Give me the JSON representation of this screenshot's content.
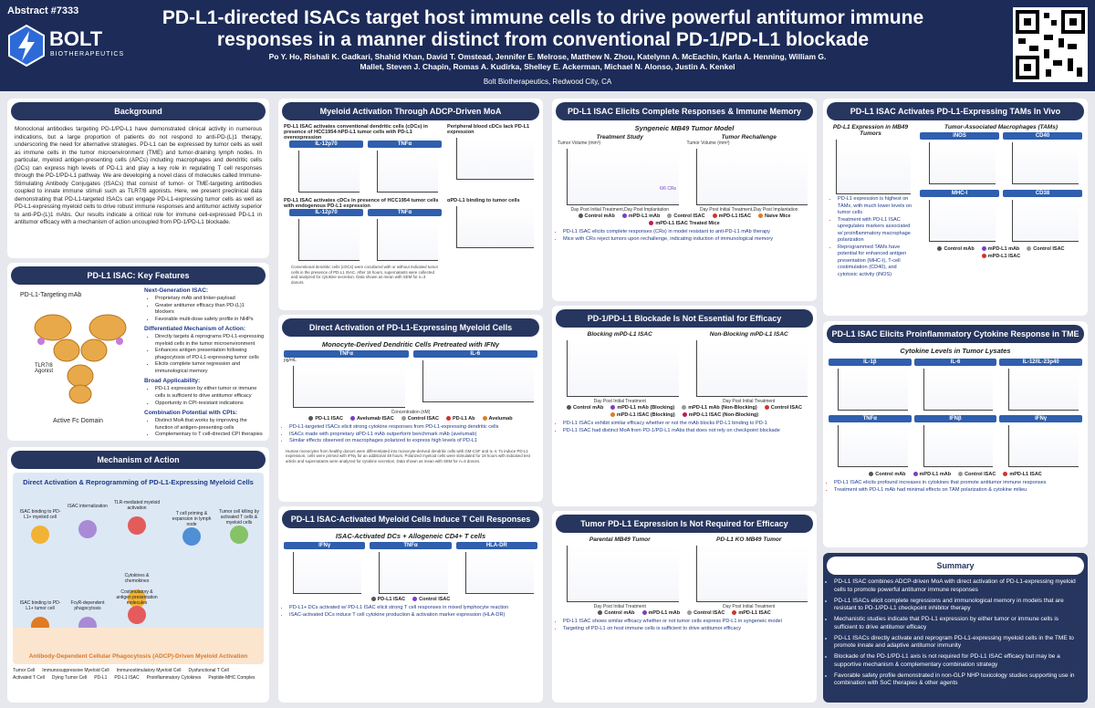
{
  "header": {
    "abstract": "Abstract #7333",
    "logo": "BOLT",
    "logo_sub": "BIOTHERAPEUTICS",
    "title": "PD-L1-directed ISACs target host immune cells to drive powerful antitumor immune responses in a manner distinct from conventional PD-1/PD-L1 blockade",
    "authors": "Po Y. Ho, Rishali K. Gadkari, Shahid Khan, David T. Omstead, Jennifer E. Melrose, Matthew N. Zhou, Katelynn A. McEachin, Karla A. Henning, William G. Mallet, Steven J. Chapin, Romas A. Kudirka, Shelley E. Ackerman, Michael N. Alonso, Justin A. Kenkel",
    "affiliation": "Bolt Biotherapeutics, Redwood City, CA"
  },
  "background": {
    "title": "Background",
    "text": "Monoclonal antibodies targeting PD-1/PD-L1 have demonstrated clinical activity in numerous indications, but a large proportion of patients do not respond to anti-PD-(L)1 therapy, underscoring the need for alternative strategies. PD-L1 can be expressed by tumor cells as well as immune cells in the tumor microenvironment (TME) and tumor-draining lymph nodes. In particular, myeloid antigen-presenting cells (APCs) including macrophages and dendritic cells (DCs) can express high levels of PD-L1 and play a key role in regulating T cell responses through the PD-1/PD-L1 pathway. We are developing a novel class of molecules called Immune-Stimulating Antibody Conjugates (ISACs) that consist of tumor- or TME-targeting antibodies coupled to innate immune stimuli such as TLR7/8 agonists. Here, we present preclinical data demonstrating that PD-L1-targeted ISACs can engage PD-L1-expressing tumor cells as well as PD-L1-expressing myeloid cells to drive robust immune responses and antitumor activity superior to anti-PD-(L)1 mAbs. Our results indicate a critical role for immune cell-expressed PD-L1 in antitumor efficacy with a mechanism of action uncoupled from PD-1/PD-L1 blockade."
  },
  "key_features": {
    "title": "PD-L1 ISAC: Key Features",
    "antibody_label": "PD-L1-Targeting mAb",
    "agonist_label": "TLR7/8 Agonist",
    "fc_label": "Active Fc Domain",
    "groups": [
      {
        "heading": "Next-Generation ISAC:",
        "items": [
          "Proprietary mAb and linker-payload",
          "Greater antitumor efficacy than PD-(L)1 blockers",
          "Favorable multi-dose safety profile in NHPs"
        ]
      },
      {
        "heading": "Differentiated Mechanism of Action:",
        "items": [
          "Directly targets & reprograms PD-L1-expressing myeloid cells in the tumor microenvironment",
          "Enhances antigen presentation following phagocytosis of PD-L1-expressing tumor cells",
          "Elicits complete tumor regression and immunological memory"
        ]
      },
      {
        "heading": "Broad Applicability:",
        "items": [
          "PD-L1 expression by either tumor or immune cells is sufficient to drive antitumor efficacy",
          "Opportunity in CPI-resistant indications"
        ]
      },
      {
        "heading": "Combination Potential with CPIs:",
        "items": [
          "Distinct MoA that works by improving the function of antigen-presenting cells",
          "Complementary to T cell-directed CPI therapies"
        ]
      }
    ]
  },
  "mechanism": {
    "title": "Mechanism of Action",
    "subtitle": "Direct Activation & Reprogramming of PD-L1-Expressing Myeloid Cells",
    "steps": [
      "ISAC binding to PD-L1+ myeloid cell",
      "ISAC internalization",
      "TLR-mediated myeloid activation",
      "T cell priming & expansion in lymph node",
      "Tumor cell killing by activated T cells & myeloid cells",
      "Cytokines & chemokines",
      "Costimulatory & antigen presentation molecules",
      "ISAC binding to PD-L1+ tumor cell",
      "FcγR-dependent phagocytosis"
    ],
    "footer": "Antibody-Dependent Cellular Phagocytosis (ADCP)-Driven Myeloid Activation",
    "legend": [
      "Tumor Cell",
      "Immunosuppressive Myeloid Cell",
      "Immunostimulatory Myeloid Cell",
      "Dysfunctional T Cell",
      "Activated T Cell",
      "Dying Tumor Cell",
      "PD-L1",
      "PD-L1 ISAC",
      "Proinflammatory Cytokines",
      "Peptide-MHC Complex"
    ]
  },
  "adcp": {
    "title": "Myeloid Activation Through ADCP-Driven MoA",
    "panel_a": "PD-L1 ISAC activates conventional dendritic cells (cDCs) in presence of HCC1954-hPD-L1 tumor cells with PD-L1 overexpression",
    "panel_b": "PD-L1 ISAC activates cDCs in presence of HCC1954 tumor cells with endogenous PD-L1 expression",
    "panel_c": "Peripheral blood cDCs lack PD-L1 expression",
    "panel_d": "αPD-L1 binding to tumor cells",
    "charts": [
      "IL-12p70",
      "TNFα"
    ],
    "note": "Conventional dendritic cells (cDCs) were cocultured with or without indicated tumor cells in the presence of PD-L1 ISAC. After 18 hours, supernatants were collected and analyzed for cytokine secretion. Data shown as mean with SEM for n=3 donors."
  },
  "direct": {
    "title": "Direct Activation of PD-L1-Expressing Myeloid Cells",
    "subtitle": "Monocyte-Derived Dendritic Cells Pretreated with IFNγ",
    "charts": [
      "TNFα",
      "IL-6"
    ],
    "y_label": "pg/mL",
    "x_label": "Concentration (nM)",
    "legend": [
      "PD-L1 ISAC",
      "Avelumab ISAC",
      "Control ISAC",
      "PD-L1 Ab",
      "Avelumab"
    ],
    "bullets": [
      "PD-L1-targeted ISACs elicit strong cytokine responses from PD-L1-expressing dendritic cells",
      "ISACs made with proprietary αPD-L1 mAb outperform benchmark mAb (avelumab)",
      "Similar effects observed on macrophages polarized to express high levels of PD-L1"
    ],
    "note": "Human monocytes from healthy donors were differentiated into monocyte-derived dendritic cells with GM-CSF and IL-4. To induce PD-L1 expression, cells were primed with IFNγ for an additional 48 hours. Polarized myeloid cells were stimulated for 18 hours with indicated test article and supernatants were analyzed for cytokine secretion. Data shown as mean with SEM for n=3 donors."
  },
  "tcell": {
    "title": "PD-L1 ISAC-Activated Myeloid Cells Induce T Cell Responses",
    "subtitle": "ISAC-Activated DCs + Allogeneic CD4+ T cells",
    "charts": [
      "IFNγ",
      "TNFα",
      "HLA-DR"
    ],
    "legend": [
      "PD-L1 ISAC",
      "Control ISAC"
    ],
    "bullets": [
      "PD-L1+ DCs activated w/ PD-L1 ISAC elicit strong T cell responses in mixed lymphocyte reaction",
      "ISAC-activated DCs induce T cell cytokine production & activation marker expression (HLA-DR)"
    ]
  },
  "complete": {
    "title": "PD-L1 ISAC Elicits Complete Responses & Immune Memory",
    "subtitle": "Syngeneic MB49 Tumor Model",
    "panels": [
      "Treatment Study",
      "Tumor Rechallenge"
    ],
    "x_labels": [
      "Day Post Initial Treatment",
      "Day Post Implantation"
    ],
    "y_label": "Tumor Volume (mm³)",
    "annotation": "6/6 CRs",
    "legend": [
      "Control mAb",
      "mPD-L1 mAb",
      "Control ISAC",
      "mPD-L1 ISAC",
      "Naive Mice",
      "mPD-L1 ISAC Treated Mice"
    ],
    "bullets": [
      "PD-L1 ISAC elicits complete responses (CRs) in model resistant to anti-PD-L1 mAb therapy",
      "Mice with CRs reject tumors upon rechallenge, indicating induction of immunological memory"
    ]
  },
  "blockade": {
    "title": "PD-1/PD-L1 Blockade Is Not Essential for Efficacy",
    "panels": [
      "Blocking mPD-L1 ISAC",
      "Non-Blocking mPD-L1 ISAC"
    ],
    "x_label": "Day Post Initial Treatment",
    "legend": [
      "Control mAb",
      "mPD-L1 mAb (Blocking)",
      "mPD-L1 mAb (Non-Blocking)",
      "Control ISAC",
      "mPD-L1 ISAC (Blocking)",
      "mPD-L1 ISAC (Non-Blocking)"
    ],
    "bullets": [
      "PD-L1 ISACs exhibit similar efficacy whether or not the mAb blocks PD-L1 binding to PD-1",
      "PD-L1 ISAC had distinct MoA from PD-1/PD-L1 mAbs that does not rely on checkpoint blockade"
    ]
  },
  "tumor": {
    "title": "Tumor PD-L1 Expression Is Not Required for Efficacy",
    "panels": [
      "Parental MB49 Tumor",
      "PD-L1 KO MB49 Tumor"
    ],
    "x_label": "Day Post Initial Treatment",
    "legend": [
      "Control mAb",
      "mPD-L1 mAb",
      "Control ISAC",
      "mPD-L1 ISAC"
    ],
    "bullets": [
      "PD-L1 ISAC shows similar efficacy whether or not tumor cells express PD-L1 in syngeneic model",
      "Targeting of PD-L1 on host immune cells is sufficient to drive antitumor efficacy"
    ]
  },
  "tams": {
    "title": "PD-L1 ISAC Activates PD-L1-Expressing TAMs In Vivo",
    "panel_a": "PD-L1 Expression in MB49 Tumors",
    "panel_b": "Tumor-Associated Macrophages (TAMs)",
    "markers": [
      "iNOS",
      "CD40",
      "MHC-I",
      "CD38"
    ],
    "bullets": [
      "PD-L1 expression is highest on TAMs, with much lower levels on tumor cells",
      "Treatment with PD-L1 ISAC upregulates markers associated w/ proinflammatory macrophage polarization",
      "Reprogrammed TAMs have potential for enhanced antigen presentation (MHC-I), T-cell costimulation (CD40), and cytotoxic activity (iNOS)"
    ],
    "legend": [
      "Control mAb",
      "mPD-L1 mAb",
      "Control ISAC",
      "mPD-L1 ISAC"
    ]
  },
  "cytokine": {
    "title": "PD-L1 ISAC Elicits Proinflammatory Cytokine Response in TME",
    "subtitle": "Cytokine Levels in Tumor Lysates",
    "charts": [
      "IL-1β",
      "IL-6",
      "IL-12/IL-23p40",
      "TNFα",
      "IFNβ",
      "IFNγ"
    ],
    "legend": [
      "Control mAb",
      "mPD-L1 mAb",
      "Control ISAC",
      "mPD-L1 ISAC"
    ],
    "bullets": [
      "PD-L1 ISAC elicits profound increases in cytokines that promote antitumor immune responses",
      "Treatment with PD-L1 mAb had minimal effects on TAM polarization & cytokine milieu"
    ]
  },
  "summary": {
    "title": "Summary",
    "bullets": [
      "PD-L1 ISAC combines ADCP-driven MoA with direct activation of PD-L1-expressing myeloid cells to promote powerful antitumor immune responses",
      "PD-L1 ISACs elicit complete regressions and immunological memory in models that are resistant to PD-1/PD-L1 checkpoint inhibitor therapy",
      "Mechanistic studies indicate that PD-L1 expression by either tumor or immune cells is sufficient to drive antitumor efficacy",
      "PD-L1 ISACs directly activate and reprogram PD-L1-expressing myeloid cells in the TME to promote innate and adaptive antitumor immunity",
      "Blockade of the PD-1/PD-L1 axis is not required for PD-L1 ISAC efficacy but may be a supportive mechanism & complementary combination strategy",
      "Favorable safety profile demonstrated in non-GLP NHP toxicology studies supporting use in combination with SoC therapies & other agents"
    ]
  }
}
